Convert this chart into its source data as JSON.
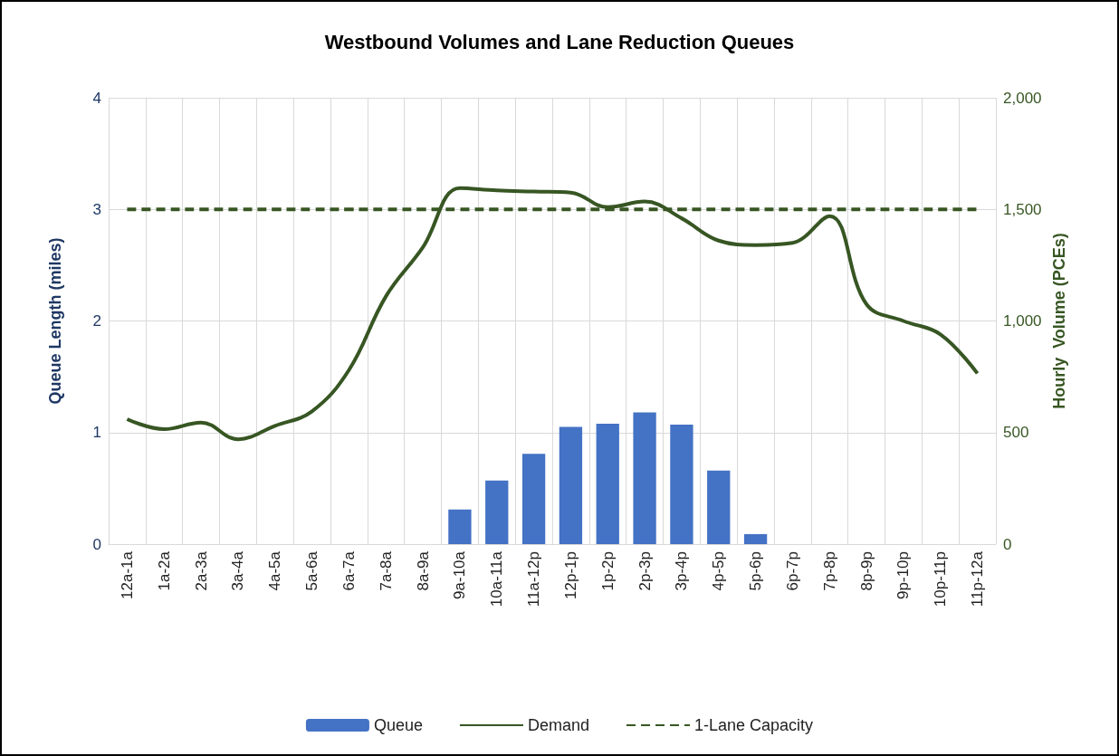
{
  "chart_data": {
    "type": "bar",
    "title": "Westbound Volumes and Lane Reduction Queues",
    "ylabel": "Queue Length (miles)",
    "y2label": "Hourly  Volume (PCEs)",
    "categories": [
      "12a-1a",
      "1a-2a",
      "2a-3a",
      "3a-4a",
      "4a-5a",
      "5a-6a",
      "6a-7a",
      "7a-8a",
      "8a-9a",
      "9a-10a",
      "10a-11a",
      "11a-12p",
      "12p-1p",
      "1p-2p",
      "2p-3p",
      "3p-4p",
      "4p-5p",
      "5p-6p",
      "6p-7p",
      "7p-8p",
      "8p-9p",
      "9p-10p",
      "10p-11p",
      "11p-12a"
    ],
    "series": [
      {
        "name": "Queue",
        "color": "#4472c4",
        "values": [
          null,
          null,
          null,
          null,
          null,
          null,
          null,
          null,
          null,
          0.31,
          0.57,
          0.81,
          1.05,
          1.08,
          1.18,
          1.07,
          0.66,
          0.09,
          null,
          null,
          null,
          null,
          null,
          null
        ]
      },
      {
        "name": "Demand",
        "type": "line",
        "axis": "y2",
        "color": "#375623",
        "line_style": "solid",
        "values": [
          560,
          515,
          545,
          470,
          530,
          595,
          780,
          1110,
          1330,
          1595,
          1585,
          1580,
          1575,
          1510,
          1535,
          1460,
          1360,
          1340,
          1350,
          1470,
          1075,
          1000,
          940,
          765
        ]
      },
      {
        "name": "1-Lane Capacity",
        "type": "line",
        "axis": "y2",
        "color": "#375623",
        "line_style": "dashed",
        "values": [
          1500,
          1500,
          1500,
          1500,
          1500,
          1500,
          1500,
          1500,
          1500,
          1500,
          1500,
          1500,
          1500,
          1500,
          1500,
          1500,
          1500,
          1500,
          1500,
          1500,
          1500,
          1500,
          1500,
          1500
        ]
      }
    ],
    "ylim": [
      0,
      4
    ],
    "yticks": [
      0,
      1,
      2,
      3,
      4
    ],
    "y2lim": [
      0,
      2000
    ],
    "y2ticks": [
      0,
      500,
      {
        "value": 1000,
        "label": "1,000"
      },
      {
        "value": 1500,
        "label": "1,500"
      },
      {
        "value": 2000,
        "label": "2,000"
      }
    ],
    "grid": true,
    "legend": "bottom",
    "marker": "none"
  }
}
